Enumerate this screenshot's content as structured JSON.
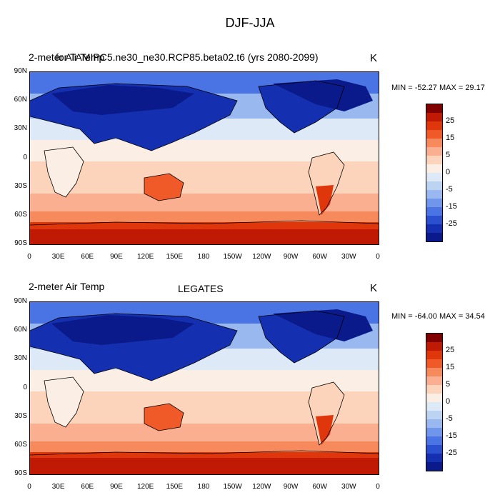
{
  "title": "DJF-JJA",
  "panels": [
    {
      "left_title": "2-meter Air Temp",
      "center_title": "for TAMIPC5.ne30_ne30.RCP85.beta02.t6 (yrs 2080-2099)",
      "units": "K",
      "min_max": "MIN = -52.27 MAX =  29.17"
    },
    {
      "left_title": "2-meter Air Temp",
      "center_title": "LEGATES",
      "units": "K",
      "min_max": "MIN = -64.00 MAX =  34.54"
    }
  ],
  "lat_labels": [
    "90N",
    "60N",
    "30N",
    "0",
    "30S",
    "60S",
    "90S"
  ],
  "lon_labels": [
    "0",
    "30E",
    "60E",
    "90E",
    "120E",
    "150E",
    "180",
    "150W",
    "120W",
    "90W",
    "60W",
    "30W",
    "0"
  ],
  "colorbar": {
    "labels": [
      "25",
      "15",
      "5",
      "0",
      "-5",
      "-15",
      "-25"
    ],
    "colors": [
      "#800000",
      "#c01a04",
      "#e0360c",
      "#f05a28",
      "#f78a5c",
      "#fab090",
      "#fcd3bb",
      "#fbeee4",
      "#dde9f7",
      "#bcd3f2",
      "#98b8ef",
      "#6f96ea",
      "#4a73e3",
      "#2a50cf",
      "#1430b0",
      "#0a1a8a"
    ]
  }
}
